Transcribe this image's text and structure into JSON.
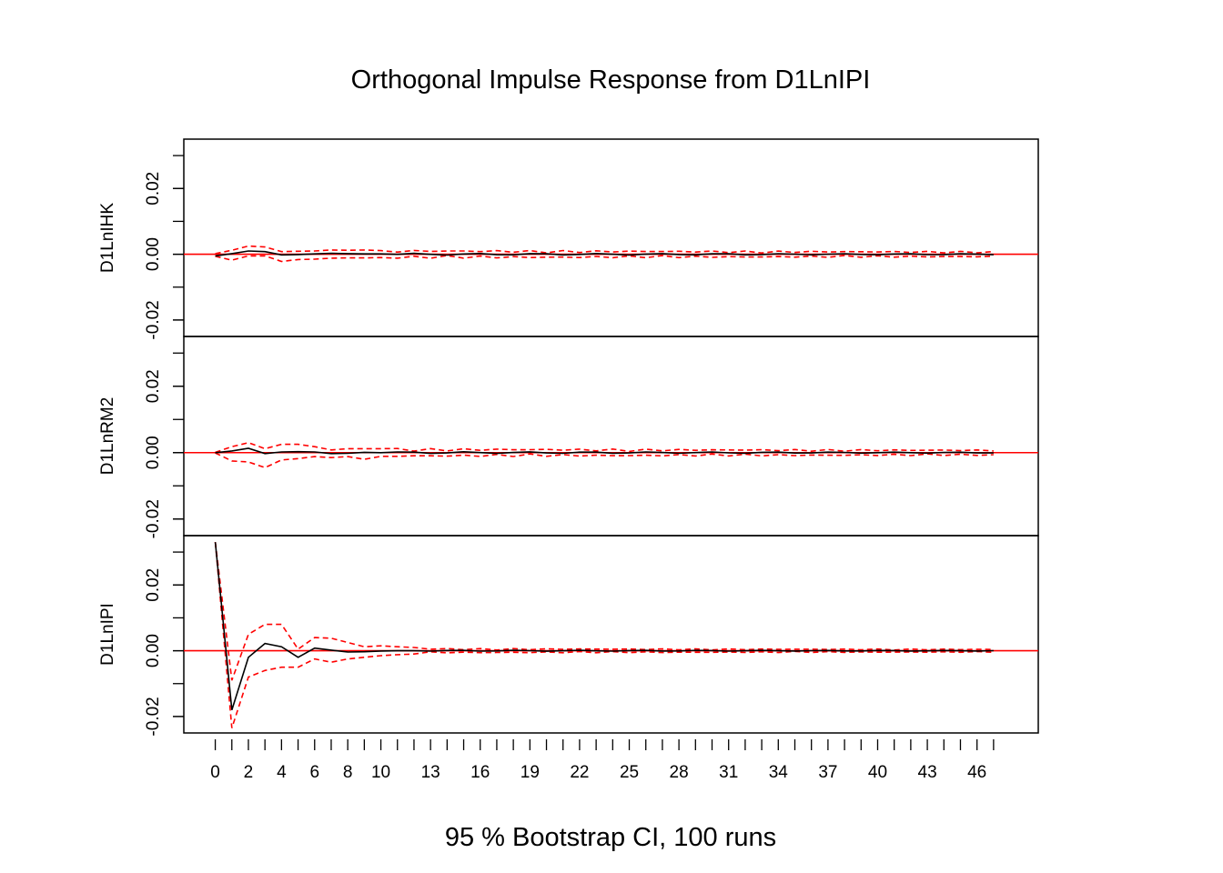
{
  "chart_data": {
    "type": "line",
    "title": "Orthogonal Impulse Response from D1LnIPI",
    "caption": "95 % Bootstrap CI,  100 runs",
    "x_ticks": [
      0,
      2,
      4,
      6,
      8,
      10,
      13,
      16,
      19,
      22,
      25,
      28,
      31,
      34,
      37,
      40,
      43,
      46
    ],
    "x_range": [
      -1.9,
      49.7
    ],
    "y_ticks": [
      -0.02,
      0.0,
      0.02
    ],
    "y_tick_labels": [
      "-0.02",
      "0.00",
      "0.02"
    ],
    "y_range": [
      -0.025,
      0.035
    ],
    "grid": false,
    "legend": "none",
    "colors": {
      "irf": "#000000",
      "ci": "#ff0000",
      "zero": "#ff0000"
    },
    "panels": [
      {
        "ylabel": "D1LnIHK",
        "irf": [
          -0.0005,
          0.0002,
          0.001,
          0.0008,
          -0.0002,
          -0.0001,
          0.0001,
          0.0003,
          0.0002,
          0.0001,
          0.0001
        ],
        "upper": [
          0.0002,
          0.0012,
          0.0025,
          0.0022,
          0.0008,
          0.0009,
          0.001,
          0.0013,
          0.0012,
          0.0013,
          0.0011
        ],
        "lower": [
          -0.0006,
          -0.0018,
          -0.0005,
          -0.0005,
          -0.0022,
          -0.0016,
          -0.0015,
          -0.0012,
          -0.0011,
          -0.0011,
          -0.001
        ],
        "tail_amplitude": 0.0009
      },
      {
        "ylabel": "D1LnRM2",
        "irf": [
          0.0,
          0.0005,
          0.0013,
          -0.0003,
          0.0002,
          0.0003,
          0.0002,
          -0.0003,
          -0.0002,
          0.0001,
          0.0
        ],
        "upper": [
          0.0001,
          0.0018,
          0.003,
          0.0012,
          0.0025,
          0.0025,
          0.0018,
          0.0008,
          0.0012,
          0.0012,
          0.0012
        ],
        "lower": [
          -0.0001,
          -0.0025,
          -0.0028,
          -0.0045,
          -0.0022,
          -0.0018,
          -0.0012,
          -0.0015,
          -0.0012,
          -0.002,
          -0.0011
        ],
        "tail_amplitude": 0.0009
      },
      {
        "ylabel": "D1LnIPI",
        "irf": [
          0.033,
          -0.018,
          -0.002,
          0.0022,
          0.0012,
          -0.002,
          0.0008,
          0.0002,
          -0.0004,
          -0.0003,
          -0.0001,
          0.0,
          0.0
        ],
        "upper": [
          0.033,
          -0.009,
          0.005,
          0.008,
          0.008,
          0.0005,
          0.004,
          0.0038,
          0.0025,
          0.0012,
          0.0015,
          0.0012,
          0.001
        ],
        "lower": [
          0.033,
          -0.0235,
          -0.008,
          -0.006,
          -0.005,
          -0.005,
          -0.0025,
          -0.0035,
          -0.0025,
          -0.002,
          -0.0015,
          -0.0012,
          -0.001
        ],
        "tail_amplitude": 0.0005
      }
    ]
  }
}
